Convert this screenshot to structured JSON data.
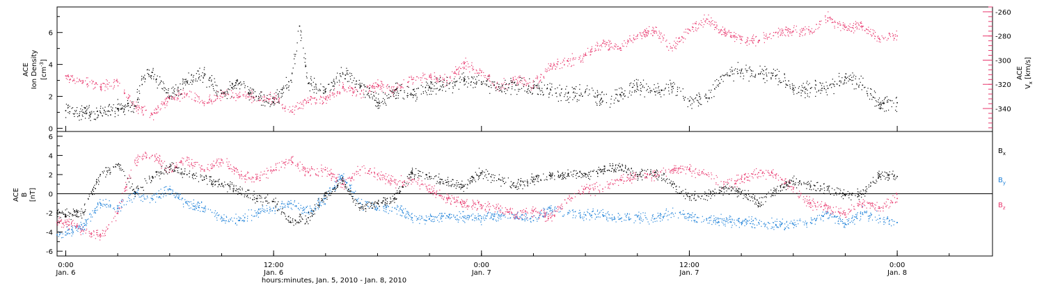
{
  "x_axis": {
    "label": "hours:minutes, Jan.  5, 2010 - Jan.  8, 2010",
    "range_hours": [
      -0.5,
      53.5
    ],
    "ticks": [
      {
        "hours": 0,
        "time": "0:00",
        "day": "Jan. 6"
      },
      {
        "hours": 12,
        "time": "12:00",
        "day": "Jan. 6"
      },
      {
        "hours": 24,
        "time": "0:00",
        "day": "Jan. 7"
      },
      {
        "hours": 36,
        "time": "12:00",
        "day": "Jan. 7"
      },
      {
        "hours": 48,
        "time": "0:00",
        "day": "Jan. 8"
      }
    ]
  },
  "top_panel": {
    "left_label_line1": "ACE",
    "left_label_line2": "Ion Density",
    "left_label_unit_main": "[cm",
    "left_label_unit_sup": "-3",
    "left_label_unit_end": "]",
    "left_ticks": [
      "0",
      "2",
      "4",
      "6"
    ],
    "right_label_line1": "ACE",
    "right_label_var": "V",
    "right_label_sub": "x",
    "right_label_unit": "[km/s]",
    "right_ticks": [
      "-260",
      "-280",
      "-300",
      "-320",
      "-340"
    ]
  },
  "bottom_panel": {
    "label_line1": "ACE",
    "label_var": "B",
    "label_unit": "[nT]",
    "ticks": [
      "6",
      "4",
      "2",
      "0",
      "-2",
      "-4",
      "-6"
    ],
    "legend": [
      {
        "var": "B",
        "sub": "x"
      },
      {
        "var": "B",
        "sub": "y"
      },
      {
        "var": "B",
        "sub": "z"
      }
    ]
  },
  "colors": {
    "density": "#000000",
    "vx": "#e8356c",
    "bx": "#000000",
    "by": "#1a7fd8",
    "bz": "#e8356c"
  },
  "chart_data": [
    {
      "type": "scatter",
      "xlabel": "hours:minutes, Jan.  5, 2010 - Jan.  8, 2010",
      "x_units": "hours from 0:00 Jan. 6",
      "xlim": [
        -0.5,
        53.5
      ],
      "series": [
        {
          "axis": "left",
          "ylim": [
            -0.2,
            7.6
          ],
          "x": [
            0,
            1,
            2,
            3,
            4,
            4.5,
            5,
            6,
            7,
            8,
            9,
            10,
            11,
            12,
            13,
            13.5,
            14,
            15,
            16,
            17,
            18,
            19,
            20,
            21,
            22,
            23,
            24,
            25,
            26,
            27,
            28,
            29,
            30,
            31,
            32,
            33,
            34,
            35,
            36,
            37,
            38,
            39,
            40,
            41,
            42,
            43,
            44,
            45,
            46,
            47,
            48
          ],
          "values": [
            1.1,
            1.0,
            1.0,
            1.2,
            1.4,
            3.2,
            3.5,
            2.0,
            2.9,
            3.3,
            2.2,
            2.8,
            2.0,
            1.6,
            3.0,
            6.4,
            2.8,
            2.3,
            3.4,
            2.7,
            1.6,
            2.4,
            2.1,
            2.6,
            2.7,
            3.0,
            2.9,
            2.6,
            2.7,
            2.5,
            2.4,
            2.2,
            2.3,
            1.7,
            2.1,
            2.6,
            2.3,
            2.6,
            1.7,
            1.9,
            3.3,
            3.6,
            3.4,
            3.3,
            2.5,
            2.5,
            2.5,
            3.2,
            2.7,
            1.5,
            1.6
          ]
        },
        {
          "axis": "right",
          "ylim": [
            -359,
            -256
          ],
          "x": [
            0,
            1,
            2,
            3,
            4,
            5,
            6,
            7,
            8,
            9,
            10,
            11,
            12,
            13,
            14,
            15,
            16,
            17,
            18,
            19,
            20,
            21,
            22,
            23,
            24,
            25,
            26,
            27,
            28,
            29,
            30,
            31,
            32,
            33,
            34,
            35,
            36,
            37,
            38,
            39,
            40,
            41,
            42,
            43,
            44,
            45,
            46,
            47,
            48
          ],
          "values": [
            -313,
            -318,
            -322,
            -318,
            -338,
            -345,
            -332,
            -328,
            -336,
            -328,
            -330,
            -330,
            -332,
            -342,
            -335,
            -332,
            -322,
            -328,
            -320,
            -325,
            -316,
            -314,
            -317,
            -303,
            -310,
            -322,
            -316,
            -321,
            -305,
            -301,
            -296,
            -286,
            -290,
            -280,
            -276,
            -290,
            -275,
            -266,
            -277,
            -283,
            -284,
            -277,
            -276,
            -276,
            -265,
            -273,
            -272,
            -283,
            -280
          ]
        }
      ]
    },
    {
      "type": "scatter",
      "xlabel": "hours:minutes, Jan.  5, 2010 - Jan.  8, 2010",
      "x_units": "hours from 0:00 Jan. 6",
      "xlim": [
        -0.5,
        53.5
      ],
      "ylim": [
        -6.5,
        6.5
      ],
      "series": [
        {
          "name": "Bx",
          "x": [
            -0.5,
            0,
            1,
            2,
            3,
            4,
            5,
            6,
            7,
            8,
            9,
            10,
            11,
            12,
            13,
            14,
            15,
            16,
            17,
            18,
            19,
            20,
            21,
            22,
            23,
            24,
            25,
            26,
            27,
            28,
            29,
            30,
            31,
            32,
            33,
            34,
            35,
            36,
            37,
            38,
            39,
            40,
            41,
            42,
            43,
            44,
            45,
            46,
            47,
            48
          ],
          "values": [
            -2.0,
            -2.2,
            -2.0,
            2.0,
            3.0,
            0.2,
            1.8,
            2.8,
            2.0,
            1.5,
            1.0,
            0.5,
            -0.5,
            -0.8,
            -3.0,
            -2.5,
            -0.2,
            1.3,
            -1.5,
            -1.0,
            -0.5,
            2.2,
            1.8,
            1.2,
            0.8,
            2.2,
            1.5,
            0.8,
            1.5,
            1.8,
            2.0,
            2.0,
            2.5,
            2.8,
            2.0,
            2.2,
            1.0,
            -0.3,
            -0.2,
            0.5,
            0.2,
            -1.0,
            0.3,
            1.3,
            0.8,
            0.5,
            -0.2,
            0.0,
            2.0,
            1.8
          ]
        },
        {
          "name": "By",
          "x": [
            -0.5,
            0,
            1,
            2,
            3,
            4,
            5,
            6,
            7,
            8,
            9,
            10,
            11,
            12,
            13,
            14,
            15,
            16,
            17,
            18,
            19,
            20,
            21,
            22,
            23,
            24,
            25,
            26,
            27,
            28,
            29,
            30,
            31,
            32,
            33,
            34,
            35,
            36,
            37,
            38,
            39,
            40,
            41,
            42,
            43,
            44,
            45,
            46,
            47,
            48
          ],
          "values": [
            -4.3,
            -4.0,
            -3.5,
            -1.0,
            -1.5,
            0.0,
            -0.5,
            0.5,
            -1.0,
            -1.5,
            -2.5,
            -2.8,
            -2.0,
            -1.5,
            -1.0,
            -2.0,
            -0.5,
            1.8,
            -1.0,
            -1.5,
            -1.5,
            -2.5,
            -2.6,
            -2.3,
            -2.5,
            -2.6,
            -2.2,
            -2.4,
            -2.8,
            -1.5,
            -2.0,
            -2.2,
            -2.2,
            -2.6,
            -2.4,
            -2.6,
            -2.0,
            -2.4,
            -2.6,
            -2.8,
            -3.0,
            -3.0,
            -3.3,
            -3.2,
            -3.0,
            -2.0,
            -3.2,
            -2.0,
            -2.6,
            -3.0
          ]
        },
        {
          "name": "Bz",
          "x": [
            -0.5,
            0,
            1,
            2,
            3,
            4,
            5,
            6,
            7,
            8,
            9,
            10,
            11,
            12,
            13,
            14,
            15,
            16,
            17,
            18,
            19,
            20,
            21,
            22,
            23,
            24,
            25,
            26,
            27,
            28,
            29,
            30,
            31,
            32,
            33,
            34,
            35,
            36,
            37,
            38,
            39,
            40,
            41,
            42,
            43,
            44,
            45,
            46,
            47,
            48
          ],
          "values": [
            -3.0,
            -3.0,
            -3.8,
            -4.5,
            -2.0,
            3.5,
            4.0,
            2.5,
            3.5,
            2.5,
            3.5,
            2.0,
            1.5,
            2.5,
            3.5,
            2.2,
            2.5,
            1.0,
            2.5,
            2.0,
            1.2,
            1.5,
            0.5,
            -0.5,
            -1.0,
            -1.2,
            -1.5,
            -2.2,
            -1.8,
            -2.5,
            -0.5,
            0.5,
            0.5,
            1.5,
            1.8,
            2.0,
            2.5,
            2.5,
            2.0,
            1.0,
            1.5,
            2.2,
            2.0,
            0.5,
            -1.0,
            -1.5,
            -2.0,
            -1.0,
            -1.5,
            -0.5
          ]
        }
      ]
    }
  ]
}
